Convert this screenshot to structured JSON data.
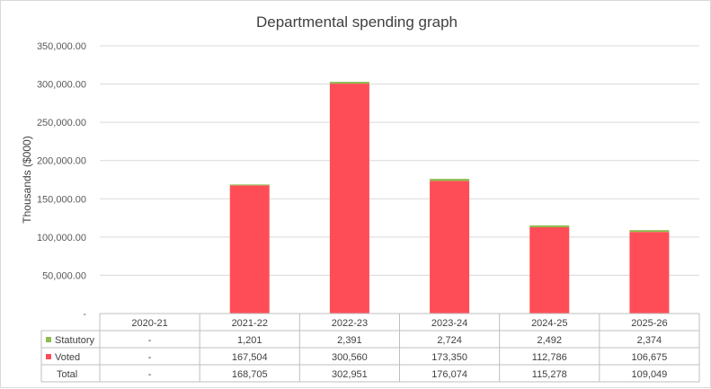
{
  "chart_data": {
    "type": "bar",
    "stacked": true,
    "title": "Departmental spending graph",
    "ylabel": "Thousands ($000)",
    "xlabel": "",
    "ylim": [
      0,
      350000
    ],
    "ytick_values": [
      0,
      50000,
      100000,
      150000,
      200000,
      250000,
      300000,
      350000
    ],
    "ytick_labels": [
      "-",
      "50,000.00",
      "100,000.00",
      "150,000.00",
      "200,000.00",
      "250,000.00",
      "300,000.00",
      "350,000.00"
    ],
    "grid": true,
    "legend_placement": "data-table",
    "categories": [
      "2020-21",
      "2021-22",
      "2022-23",
      "2023-24",
      "2024-25",
      "2025-26"
    ],
    "series": [
      {
        "name": "Voted",
        "color": "#ff4d57",
        "values": [
          0,
          167504,
          300560,
          173350,
          112786,
          106675
        ],
        "labels": [
          "-",
          "167,504",
          "300,560",
          "173,350",
          "112,786",
          "106,675"
        ]
      },
      {
        "name": "Statutory",
        "color": "#8ebc4f",
        "values": [
          0,
          1201,
          2391,
          2724,
          2492,
          2374
        ],
        "labels": [
          "-",
          "1,201",
          "2,391",
          "2,724",
          "2,492",
          "2,374"
        ]
      }
    ],
    "total": {
      "name": "Total",
      "labels": [
        "-",
        "168,705",
        "302,951",
        "176,074",
        "115,278",
        "109,049"
      ]
    }
  }
}
